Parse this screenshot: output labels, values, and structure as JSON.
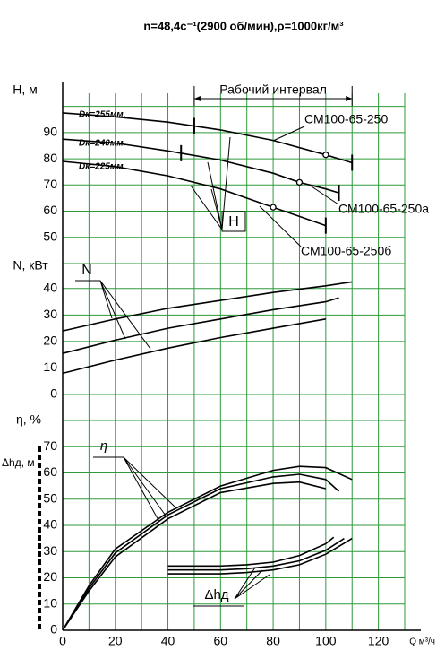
{
  "chart_data": [
    {
      "type": "line",
      "title": "n=48,4с⁻¹(2900 об/мин),ρ=1000кг/м³",
      "ylabel": "H, м",
      "xlim": [
        0,
        130
      ],
      "ylim": [
        40,
        105
      ],
      "yticks": [
        90,
        80,
        70,
        60,
        50
      ],
      "ygrid": [
        100,
        90,
        80,
        70,
        60,
        50,
        40
      ],
      "work_interval": {
        "label": "Рабочий интервал",
        "x": [
          50,
          110
        ]
      },
      "series_groups": [
        {
          "label": "H",
          "series": [
            {
              "name": "Dк=255мм.",
              "model": "СМ100-65-250",
              "color": "#000000",
              "x": [
                0,
                20,
                40,
                60,
                80,
                100,
                110
              ],
              "values": [
                97.5,
                96,
                94,
                91,
                87,
                81.5,
                78.5
              ],
              "rated": [
                100,
                81.5
              ],
              "range_marks": [
                50,
                110
              ]
            },
            {
              "name": "Dк=240мм.",
              "model": "СМ100-65-250а",
              "color": "#000000",
              "x": [
                0,
                20,
                40,
                60,
                80,
                90,
                100,
                105
              ],
              "values": [
                87.5,
                86,
                83,
                79.5,
                74.5,
                71,
                68.5,
                67
              ],
              "rated": [
                90,
                71
              ],
              "range_marks": [
                45,
                105
              ]
            },
            {
              "name": "Dк=225мм.",
              "model": "СМ100-65-250б",
              "color": "#000000",
              "x": [
                0,
                20,
                40,
                60,
                80,
                90,
                100
              ],
              "values": [
                79,
                77,
                73.5,
                68.5,
                61.5,
                58,
                54.5
              ],
              "rated": [
                80,
                61.5
              ],
              "range_marks": [
                100
              ]
            }
          ]
        }
      ]
    },
    {
      "type": "line",
      "ylabel": "N, кВт",
      "xlim": [
        0,
        130
      ],
      "ylim": [
        0,
        45
      ],
      "yticks": [
        40,
        30,
        20,
        10,
        0
      ],
      "ygrid": [
        40,
        30,
        20,
        10,
        0
      ],
      "series_groups": [
        {
          "label": "N",
          "series": [
            {
              "color": "#000000",
              "x": [
                0,
                20,
                40,
                60,
                80,
                100,
                110
              ],
              "values": [
                24,
                28.5,
                32.5,
                35.5,
                38.5,
                41,
                42.5
              ]
            },
            {
              "color": "#000000",
              "x": [
                0,
                20,
                40,
                60,
                80,
                100,
                105
              ],
              "values": [
                15.5,
                20.5,
                25,
                28.5,
                32,
                35,
                36.5
              ]
            },
            {
              "color": "#000000",
              "x": [
                0,
                20,
                40,
                60,
                80,
                100
              ],
              "values": [
                8,
                13,
                17.5,
                21.5,
                25,
                28.5
              ]
            }
          ]
        }
      ]
    },
    {
      "type": "line",
      "ylabels": [
        "η, %",
        "Δhд, м"
      ],
      "xlabel": "Q м³/ч",
      "xlim": [
        0,
        130
      ],
      "ylim": [
        0,
        80
      ],
      "yticks": [
        70,
        60,
        50,
        40,
        30,
        20,
        10,
        0
      ],
      "ygrid": [
        80,
        70,
        60,
        50,
        40,
        30,
        20,
        10,
        0
      ],
      "xticks": [
        0,
        20,
        40,
        60,
        80,
        100,
        120
      ],
      "xgrid": [
        0,
        10,
        20,
        30,
        40,
        50,
        60,
        70,
        80,
        90,
        100,
        110,
        120,
        130
      ],
      "series_groups": [
        {
          "label": "η",
          "series": [
            {
              "color": "#000000",
              "x": [
                0,
                10,
                20,
                40,
                60,
                80,
                90,
                100,
                110
              ],
              "values": [
                0,
                17,
                31,
                45,
                55,
                61,
                62.5,
                62,
                57.5
              ]
            },
            {
              "color": "#000000",
              "x": [
                0,
                10,
                20,
                40,
                60,
                80,
                90,
                100,
                105
              ],
              "values": [
                0,
                16,
                29.5,
                44,
                54,
                58.5,
                59.5,
                57.5,
                53
              ]
            },
            {
              "color": "#000000",
              "x": [
                0,
                10,
                20,
                40,
                60,
                80,
                90,
                100
              ],
              "values": [
                0,
                15,
                28,
                42.5,
                52.5,
                56,
                56.5,
                54
              ]
            }
          ]
        },
        {
          "label": "Δhд",
          "series": [
            {
              "color": "#000000",
              "x": [
                40,
                60,
                70,
                80,
                90,
                100,
                103
              ],
              "values": [
                24.5,
                24.5,
                25,
                26,
                28.5,
                33,
                35.5
              ]
            },
            {
              "color": "#000000",
              "x": [
                40,
                60,
                70,
                80,
                90,
                100,
                107
              ],
              "values": [
                23,
                23,
                23.5,
                24.5,
                26.5,
                30.5,
                35
              ]
            },
            {
              "color": "#000000",
              "x": [
                40,
                60,
                70,
                80,
                90,
                100,
                110
              ],
              "values": [
                21.5,
                21.5,
                22,
                23,
                25,
                29,
                35
              ]
            }
          ]
        }
      ]
    }
  ]
}
